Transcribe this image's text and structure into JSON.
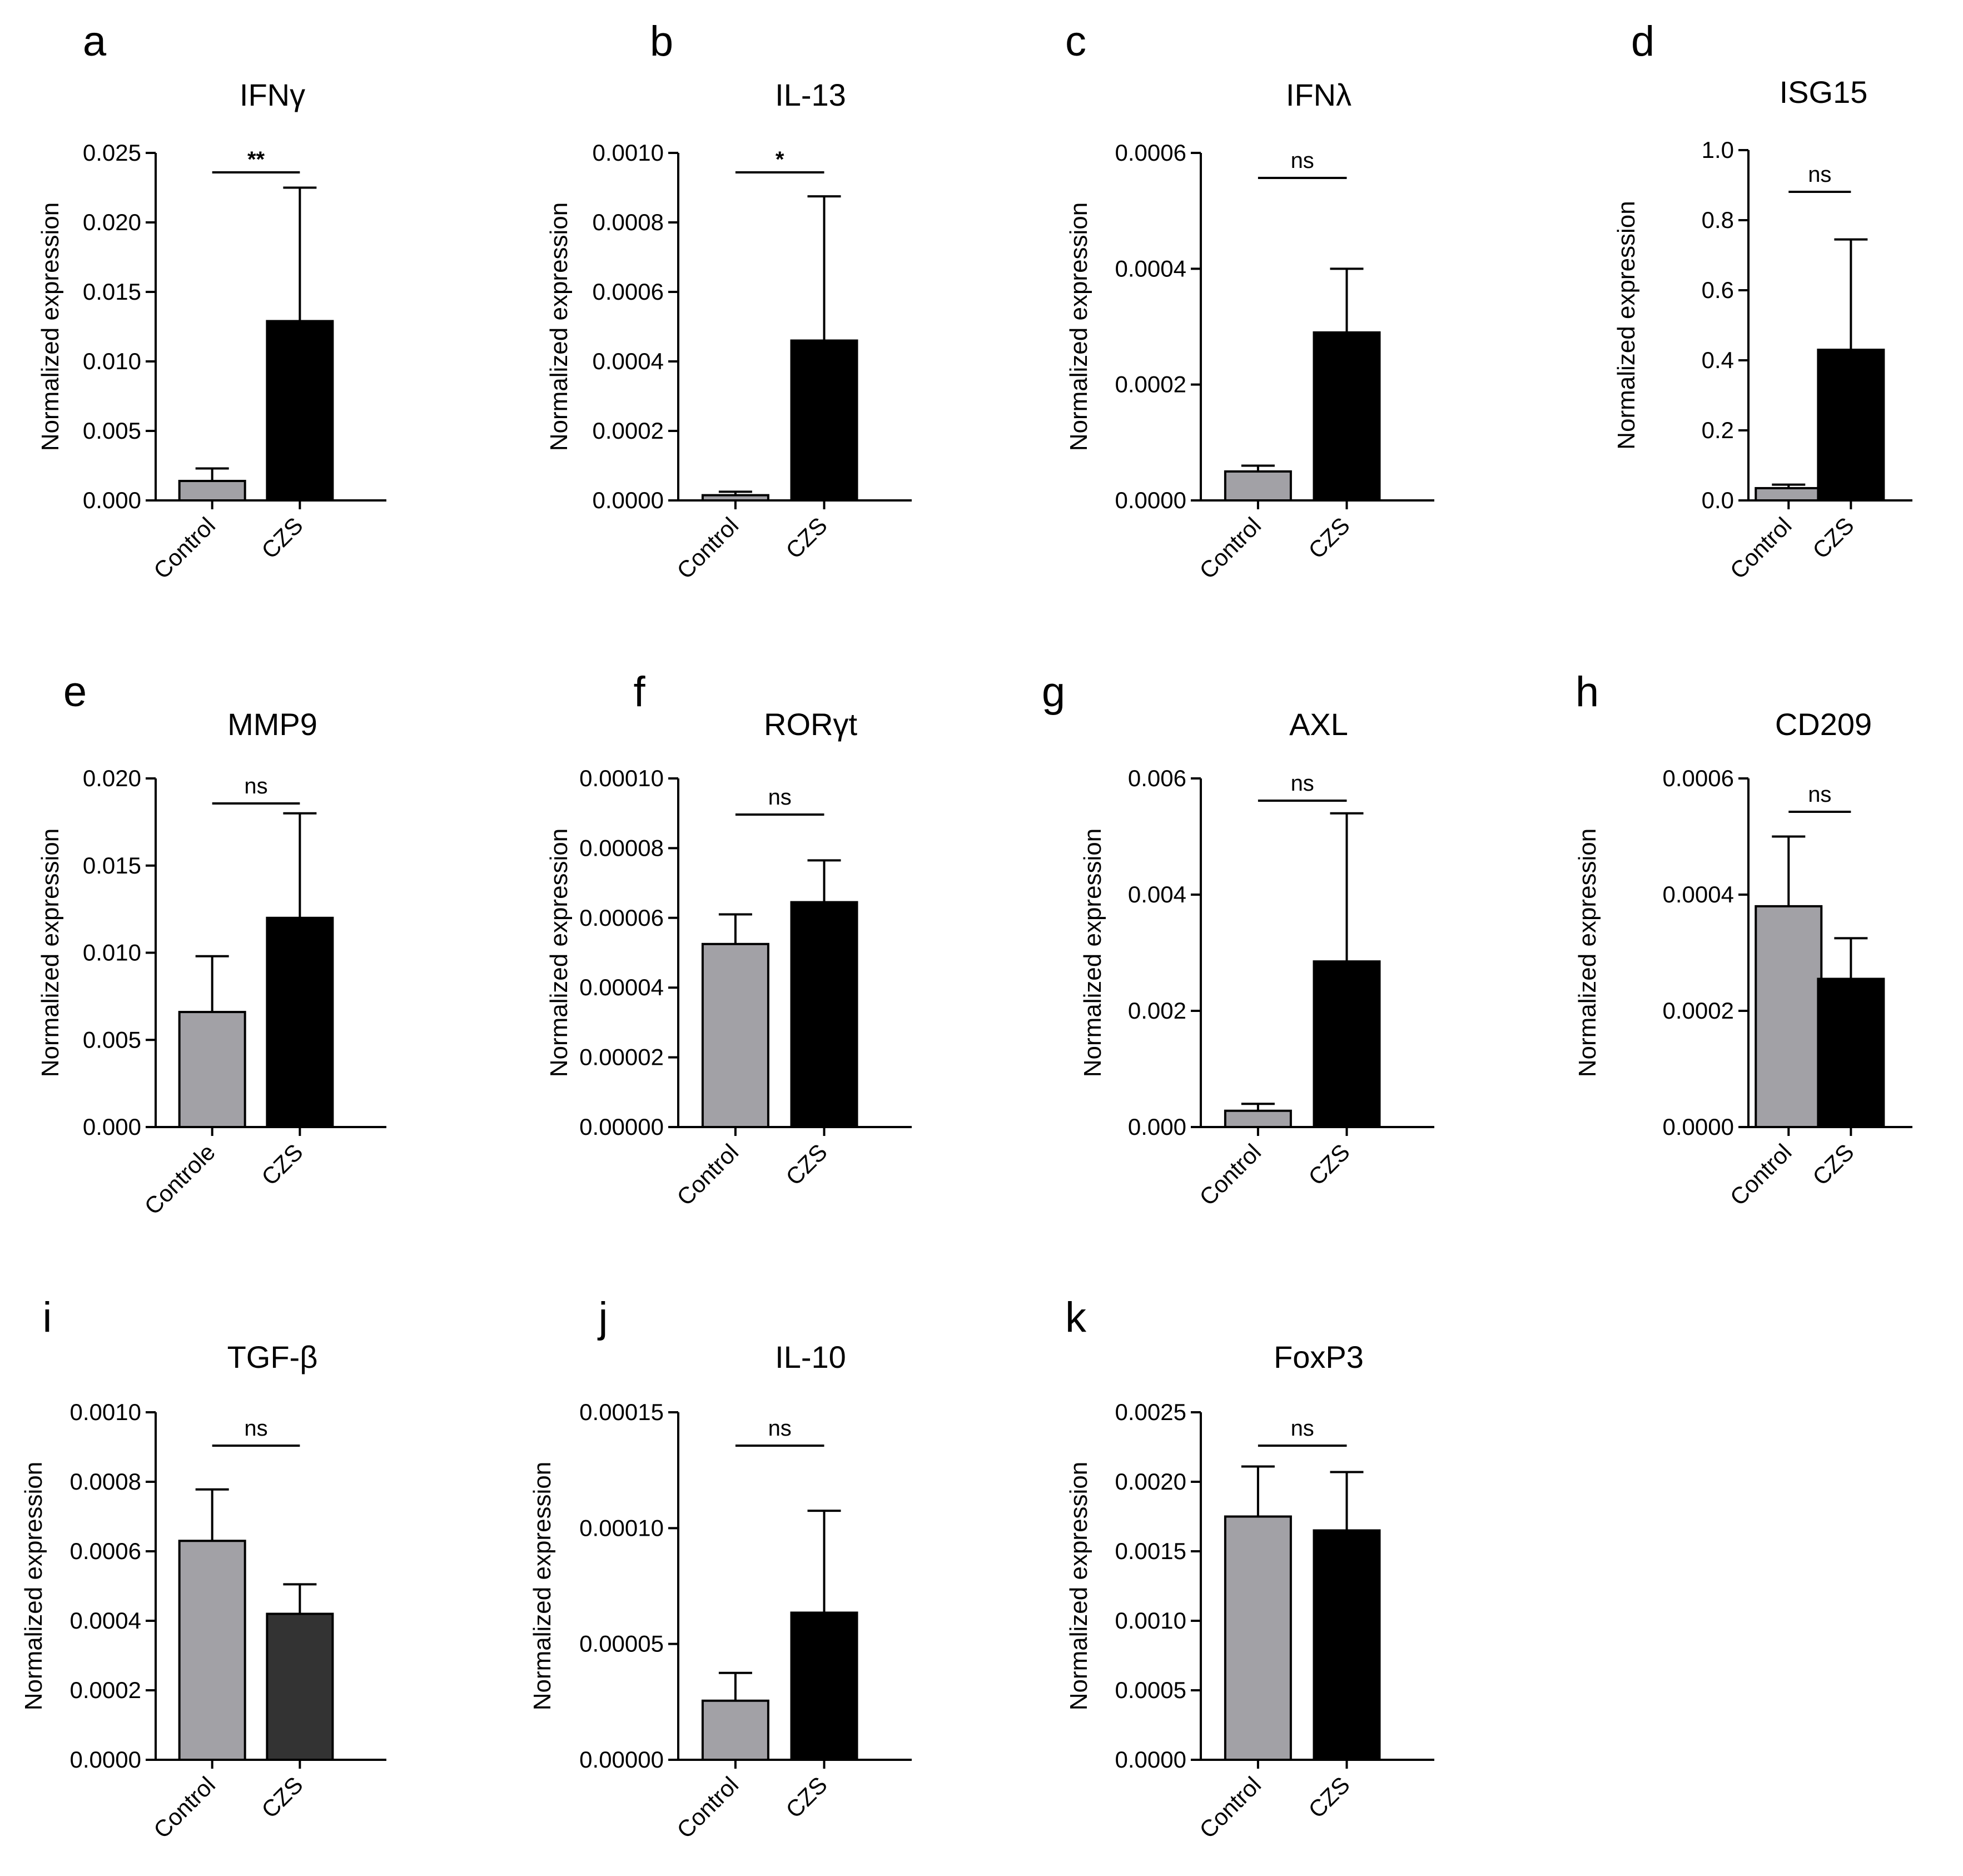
{
  "colors": {
    "control": "#a2a1a6",
    "czs": "#000000",
    "czs_alt": "#333333"
  },
  "chart_data": [
    {
      "letter": "a",
      "type": "bar",
      "title": "IFNγ",
      "ylabel": "Normalized expression",
      "categories": [
        "Control",
        "CZS"
      ],
      "ylim": [
        0,
        0.025
      ],
      "yticks": [
        "0.000",
        "0.005",
        "0.010",
        "0.015",
        "0.020",
        "0.025"
      ],
      "values": [
        0.0014,
        0.0129
      ],
      "errors": [
        0.0009,
        0.0096
      ],
      "bar_colors": [
        "control",
        "czs"
      ],
      "significance": "**"
    },
    {
      "letter": "b",
      "type": "bar",
      "title": "IL-13",
      "ylabel": "Normalized expression",
      "categories": [
        "Control",
        "CZS"
      ],
      "ylim": [
        0,
        0.001
      ],
      "yticks": [
        "0.0000",
        "0.0002",
        "0.0004",
        "0.0006",
        "0.0008",
        "0.0010"
      ],
      "values": [
        1.5e-05,
        0.00046
      ],
      "errors": [
        1e-05,
        0.000415
      ],
      "bar_colors": [
        "control",
        "czs"
      ],
      "significance": "*"
    },
    {
      "letter": "c",
      "type": "bar",
      "title": "IFNλ",
      "ylabel": "Normalized expression",
      "categories": [
        "Control",
        "CZS"
      ],
      "ylim": [
        0,
        0.0006
      ],
      "yticks": [
        "0.0000",
        "0.0002",
        "0.0004",
        "0.0006"
      ],
      "values": [
        5e-05,
        0.00029
      ],
      "errors": [
        1e-05,
        0.00011
      ],
      "bar_colors": [
        "control",
        "czs"
      ],
      "significance": "ns"
    },
    {
      "letter": "d",
      "type": "bar",
      "title": "ISG15",
      "ylabel": "Normalized expression",
      "categories": [
        "Control",
        "CZS"
      ],
      "ylim": [
        0,
        1.0
      ],
      "yticks": [
        "0.0",
        "0.2",
        "0.4",
        "0.6",
        "0.8",
        "1.0"
      ],
      "values": [
        0.035,
        0.43
      ],
      "errors": [
        0.01,
        0.315
      ],
      "bar_colors": [
        "control",
        "czs"
      ],
      "significance": "ns"
    },
    {
      "letter": "e",
      "type": "bar",
      "title": "MMP9",
      "ylabel": "Normalized expression",
      "categories": [
        "Controle",
        "CZS"
      ],
      "ylim": [
        0,
        0.02
      ],
      "yticks": [
        "0.000",
        "0.005",
        "0.010",
        "0.015",
        "0.020"
      ],
      "values": [
        0.0066,
        0.012
      ],
      "errors": [
        0.0032,
        0.006
      ],
      "bar_colors": [
        "control",
        "czs"
      ],
      "significance": "ns"
    },
    {
      "letter": "f",
      "type": "bar",
      "title": "RORγt",
      "ylabel": "Normalized expression",
      "categories": [
        "Control",
        "CZS"
      ],
      "ylim": [
        0,
        0.0001
      ],
      "yticks": [
        "0.00000",
        "0.00002",
        "0.00004",
        "0.00006",
        "0.00008",
        "0.00010"
      ],
      "values": [
        5.25e-05,
        6.45e-05
      ],
      "errors": [
        8.5e-06,
        1.2e-05
      ],
      "bar_colors": [
        "control",
        "czs"
      ],
      "significance": "ns"
    },
    {
      "letter": "g",
      "type": "bar",
      "title": "AXL",
      "ylabel": "Normalized expression",
      "categories": [
        "Control",
        "CZS"
      ],
      "ylim": [
        0,
        0.006
      ],
      "yticks": [
        "0.000",
        "0.002",
        "0.004",
        "0.006"
      ],
      "values": [
        0.00028,
        0.00285
      ],
      "errors": [
        0.00012,
        0.00255
      ],
      "bar_colors": [
        "control",
        "czs"
      ],
      "significance": "ns"
    },
    {
      "letter": "h",
      "type": "bar",
      "title": "CD209",
      "ylabel": "Normalized expression",
      "categories": [
        "Control",
        "CZS"
      ],
      "ylim": [
        0,
        0.0006
      ],
      "yticks": [
        "0.0000",
        "0.0002",
        "0.0004",
        "0.0006"
      ],
      "values": [
        0.00038,
        0.000255
      ],
      "errors": [
        0.00012,
        7e-05
      ],
      "bar_colors": [
        "control",
        "czs"
      ],
      "significance": "ns"
    },
    {
      "letter": "i",
      "type": "bar",
      "title": "TGF-β",
      "ylabel": "Normalized expression",
      "categories": [
        "Control",
        "CZS"
      ],
      "ylim": [
        0,
        0.001
      ],
      "yticks": [
        "0.0000",
        "0.0002",
        "0.0004",
        "0.0006",
        "0.0008",
        "0.0010"
      ],
      "values": [
        0.00063,
        0.00042
      ],
      "errors": [
        0.000148,
        8.5e-05
      ],
      "bar_colors": [
        "control",
        "czs_alt"
      ],
      "significance": "ns"
    },
    {
      "letter": "j",
      "type": "bar",
      "title": "IL-10",
      "ylabel": "Normalized expression",
      "categories": [
        "Control",
        "CZS"
      ],
      "ylim": [
        0,
        0.00015
      ],
      "yticks": [
        "0.00000",
        "0.00005",
        "0.00010",
        "0.00015"
      ],
      "values": [
        2.55e-05,
        6.35e-05
      ],
      "errors": [
        1.2e-05,
        4.4e-05
      ],
      "bar_colors": [
        "control",
        "czs"
      ],
      "significance": "ns"
    },
    {
      "letter": "k",
      "type": "bar",
      "title": "FoxP3",
      "ylabel": "Normalized expression",
      "categories": [
        "Control",
        "CZS"
      ],
      "ylim": [
        0,
        0.0025
      ],
      "yticks": [
        "0.0000",
        "0.0005",
        "0.0010",
        "0.0015",
        "0.0020",
        "0.0025"
      ],
      "values": [
        0.00175,
        0.00165
      ],
      "errors": [
        0.00036,
        0.00042
      ],
      "bar_colors": [
        "control",
        "czs"
      ],
      "significance": "ns"
    }
  ]
}
